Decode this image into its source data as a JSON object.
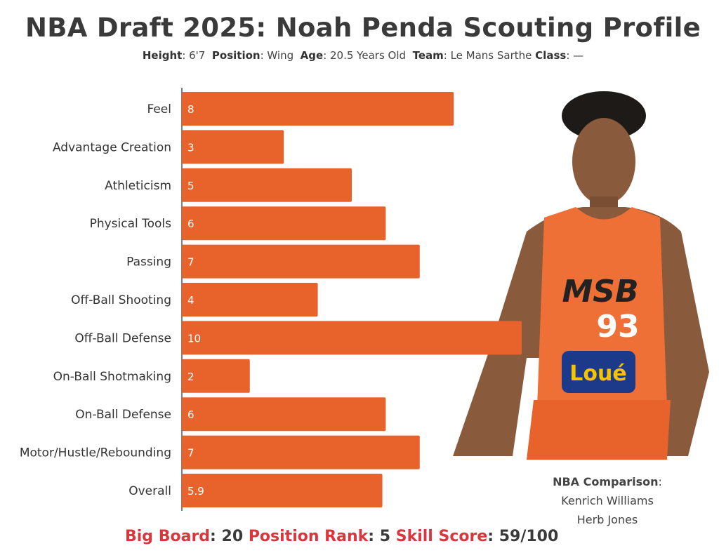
{
  "title": "NBA Draft 2025: Noah Penda Scouting Profile",
  "profile": [
    {
      "label": "Height",
      "value": "6'7"
    },
    {
      "label": "Position",
      "value": "Wing"
    },
    {
      "label": "Age",
      "value": "20.5 Years Old"
    },
    {
      "label": "Team",
      "value": "Le Mans Sarthe"
    },
    {
      "label": "Class",
      "value": "—"
    }
  ],
  "chart_data": {
    "type": "bar",
    "orientation": "horizontal",
    "categories": [
      "Feel",
      "Advantage Creation",
      "Athleticism",
      "Physical Tools",
      "Passing",
      "Off-Ball Shooting",
      "Off-Ball Defense",
      "On-Ball Shotmaking",
      "On-Ball Defense",
      "Motor/Hustle/Rebounding",
      "Overall"
    ],
    "values": [
      8,
      3,
      5,
      6,
      7,
      4,
      10,
      2,
      6,
      7,
      5.9
    ],
    "xlim": [
      0,
      10
    ],
    "bar_color": "#E8632C",
    "grid": false
  },
  "comparison": {
    "label": "NBA Comparison",
    "players": [
      "Kenrich Williams",
      "Herb Jones"
    ]
  },
  "footer": [
    {
      "label": "Big Board",
      "value": "20"
    },
    {
      "label": "Position Rank",
      "value": "5"
    },
    {
      "label": "Skill Score",
      "value": "59/100"
    }
  ],
  "jersey": {
    "team": "MSB",
    "number": "93",
    "sponsor": "Loué"
  }
}
